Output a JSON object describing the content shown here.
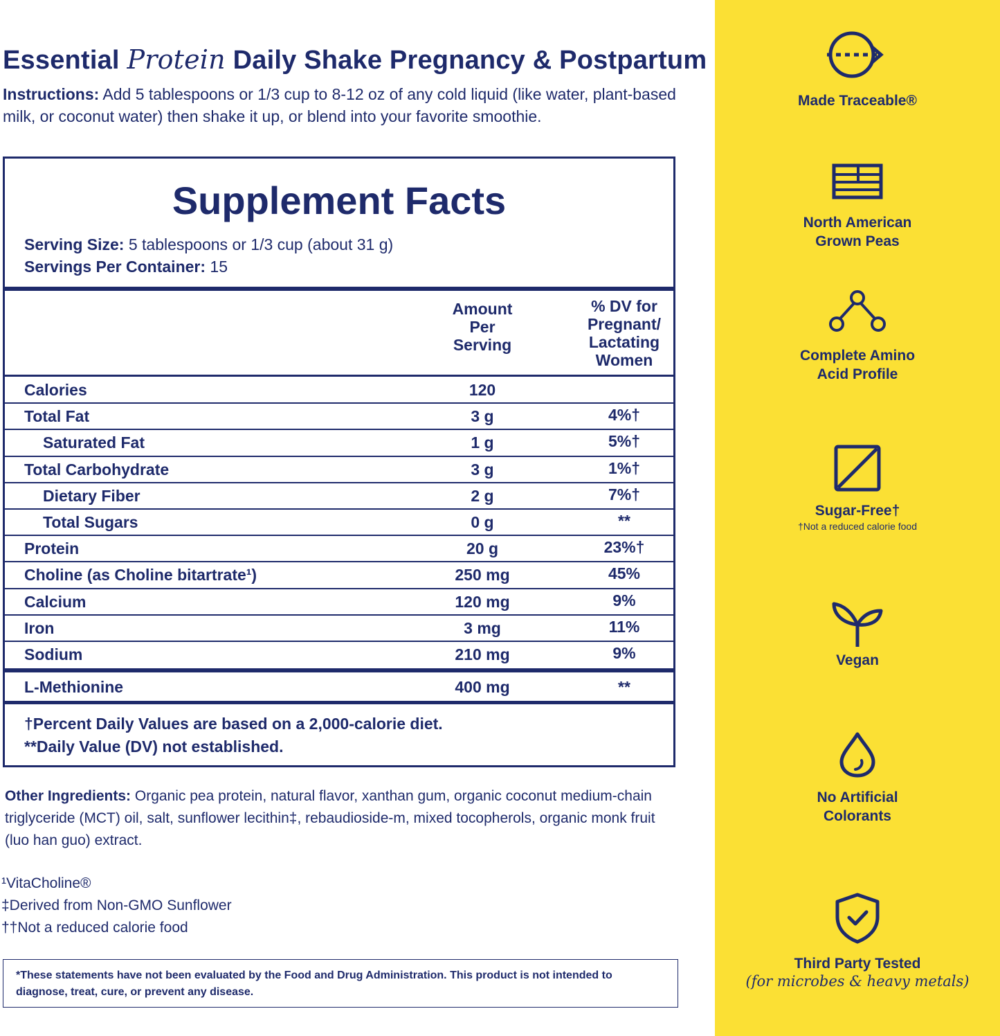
{
  "header": {
    "title_part1": "Essential",
    "title_italic": "Protein",
    "title_part2": "Daily Shake Pregnancy & Postpartum",
    "instructions_label": "Instructions:",
    "instructions_text": "Add 5 tablespoons or 1/3 cup to 8-12 oz of any cold liquid (like water, plant-based milk, or coconut water) then shake it up, or blend into your favorite smoothie."
  },
  "facts": {
    "title": "Supplement Facts",
    "serving_size_label": "Serving Size:",
    "serving_size_value": "5 tablespoons or 1/3 cup (about 31 g)",
    "servings_label": "Servings Per Container:",
    "servings_value": "15",
    "col_amount": [
      "Amount",
      "Per",
      "Serving"
    ],
    "col_dv": [
      "% DV for",
      "Pregnant/",
      "Lactating",
      "Women"
    ],
    "rows": [
      {
        "label": "Calories",
        "amount": "120",
        "dv": ""
      },
      {
        "label": "Total Fat",
        "amount": "3 g",
        "dv": "4%†"
      },
      {
        "label": "Saturated Fat",
        "amount": "1 g",
        "dv": "5%†"
      },
      {
        "label": "Total Carbohydrate",
        "amount": "3 g",
        "dv": "1%†"
      },
      {
        "label": "Dietary Fiber",
        "amount": "2 g",
        "dv": "7%†"
      },
      {
        "label": "Total Sugars",
        "amount": "0 g",
        "dv": "**"
      },
      {
        "label": "Protein",
        "amount": "20 g",
        "dv": "23%†"
      },
      {
        "label": "Choline (as Choline bitartrate¹)",
        "amount": "250 mg",
        "dv": "45%"
      },
      {
        "label": "Calcium",
        "amount": "120 mg",
        "dv": "9%"
      },
      {
        "label": "Iron",
        "amount": "3 mg",
        "dv": "11%"
      },
      {
        "label": "Sodium",
        "amount": "210 mg",
        "dv": "9%"
      }
    ],
    "extra_row": {
      "label": "L-Methionine",
      "amount": "400 mg",
      "dv": "**"
    },
    "footnote1": "†Percent Daily Values are based on a 2,000-calorie diet.",
    "footnote2": "**Daily Value (DV) not established."
  },
  "other": {
    "label": "Other Ingredients:",
    "text": "Organic pea protein, natural flavor, xanthan gum, organic coconut medium-chain triglyceride (MCT) oil, salt, sunflower lecithin‡, rebaudioside-m, mixed tocopherols, organic monk fruit (luo han guo) extract.",
    "mark1": "¹VitaCholine®",
    "mark2": "‡Derived from Non-GMO Sunflower",
    "mark3": "††Not a reduced calorie food"
  },
  "disclaimer": "*These statements have not been evaluated by the Food and Drug Administration. This product is not intended to diagnose, treat, cure, or prevent any disease.",
  "badges": {
    "traceable": "Made Traceable®",
    "peas_line1": "North American",
    "peas_line2": "Grown Peas",
    "amino_line1": "Complete Amino",
    "amino_line2": "Acid Profile",
    "sugar": "Sugar-Free†",
    "sugar_sub": "†Not a reduced calorie food",
    "vegan": "Vegan",
    "colorants_line1": "No Artificial",
    "colorants_line2": "Colorants",
    "tested": "Third Party Tested",
    "tested_sub": "(for microbes & heavy metals)"
  },
  "colors": {
    "navy": "#1e2a6b",
    "yellow": "#fbe034"
  }
}
